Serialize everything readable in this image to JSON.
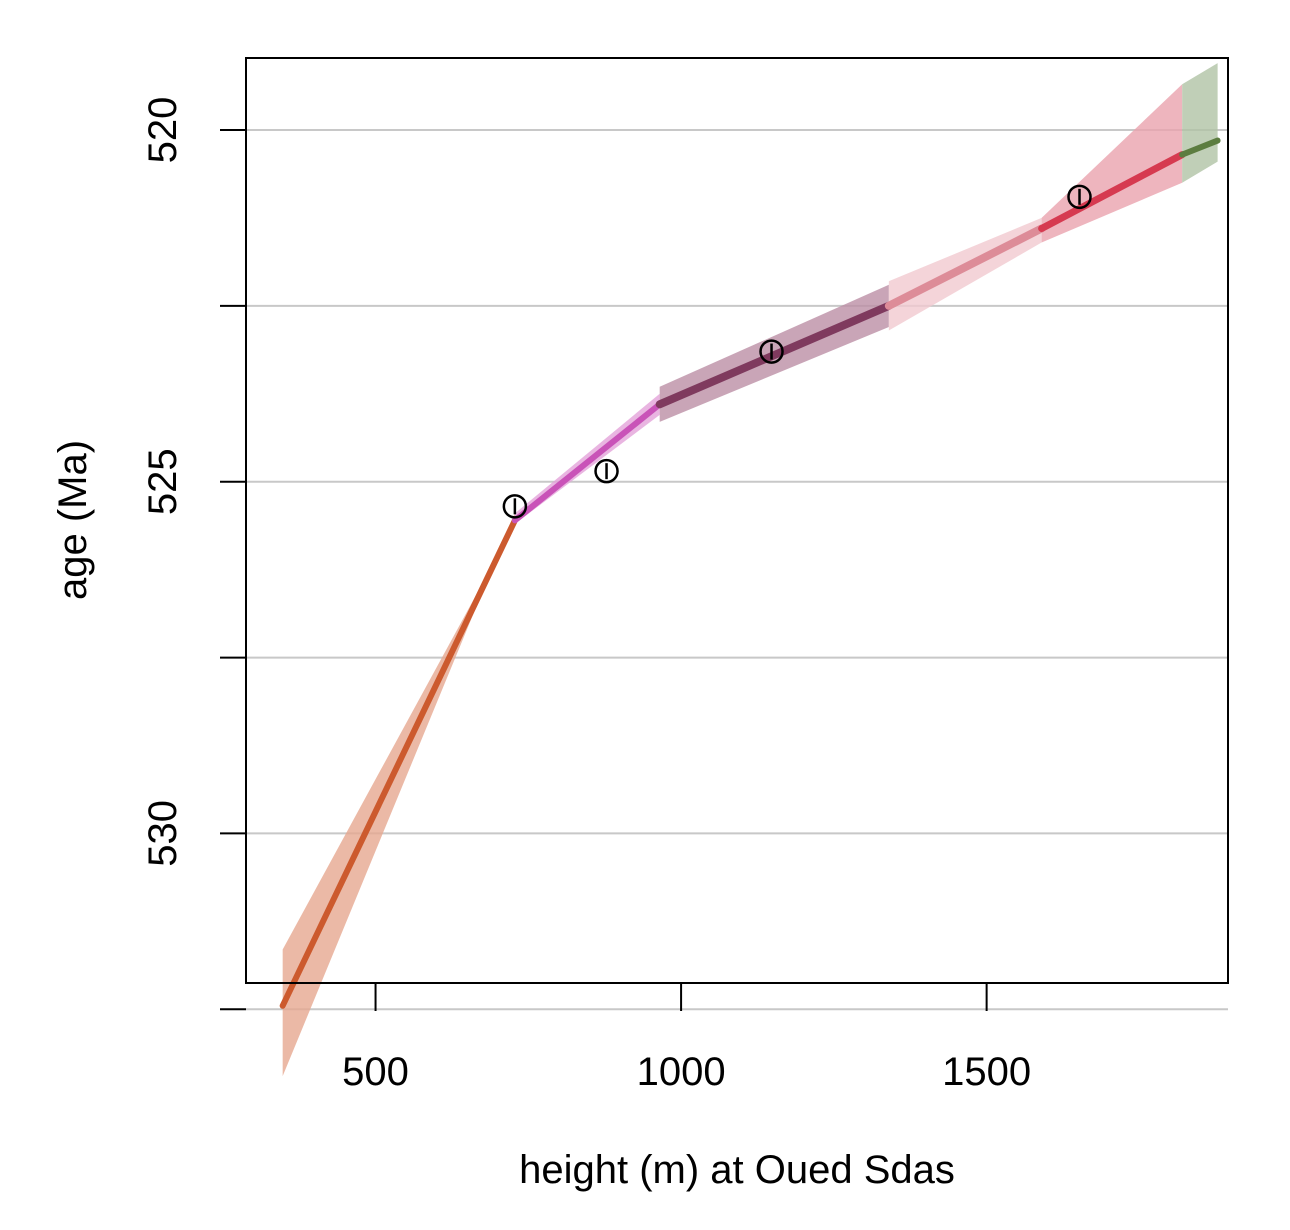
{
  "chart_data": {
    "type": "line",
    "title": "",
    "xlabel": "height (m) at Oued Sdas",
    "ylabel": "age (Ma)",
    "xlim": [
      288,
      1895
    ],
    "ylim": [
      520,
      533.15
    ],
    "y_reversed": true,
    "x_ticks": [
      {
        "value": 500,
        "label": "500"
      },
      {
        "value": 1000,
        "label": "1000"
      },
      {
        "value": 1500,
        "label": "1500"
      }
    ],
    "y_ticks": [
      {
        "value": 520,
        "label": "520"
      },
      {
        "value": 522.5,
        "label": ""
      },
      {
        "value": 525,
        "label": "525"
      },
      {
        "value": 527.5,
        "label": ""
      },
      {
        "value": 530,
        "label": "530"
      },
      {
        "value": 532.5,
        "label": ""
      }
    ],
    "grid": "horizontal",
    "series": [
      {
        "color": "#cc5a2e",
        "band_color": "#e6a890",
        "width": 6,
        "points": [
          [
            348,
            532.45
          ],
          [
            728,
            525.55
          ]
        ],
        "band": [
          [
            348,
            531.65,
            533.45
          ],
          [
            728,
            525.6,
            525.45
          ]
        ]
      },
      {
        "color": "#c953b8",
        "band_color": "#e3a2da",
        "width": 6,
        "points": [
          [
            728,
            525.55
          ],
          [
            965,
            523.9
          ]
        ],
        "band": [
          [
            728,
            525.45,
            525.6
          ],
          [
            965,
            523.75,
            524.05
          ]
        ]
      },
      {
        "color": "#7f3a5e",
        "band_color": "#bb8ea5",
        "width": 8,
        "points": [
          [
            965,
            523.9
          ],
          [
            1340,
            522.5
          ]
        ],
        "band": [
          [
            965,
            523.65,
            524.15
          ],
          [
            1340,
            522.2,
            522.8
          ]
        ]
      },
      {
        "color": "#dd8c98",
        "band_color": "#f1c9cf",
        "width": 8,
        "points": [
          [
            1340,
            522.5
          ],
          [
            1590,
            521.4
          ]
        ],
        "band": [
          [
            1340,
            522.15,
            522.85
          ],
          [
            1590,
            521.25,
            521.6
          ]
        ]
      },
      {
        "color": "#d63a50",
        "band_color": "#eaa3ae",
        "width": 7,
        "points": [
          [
            1590,
            521.4
          ],
          [
            1820,
            520.35
          ]
        ],
        "band": [
          [
            1590,
            521.25,
            521.6
          ],
          [
            1820,
            519.35,
            520.75
          ]
        ]
      },
      {
        "color": "#5c7d40",
        "band_color": "#b0c3a5",
        "width": 6,
        "points": [
          [
            1820,
            520.35
          ],
          [
            1878,
            520.15
          ]
        ],
        "band": [
          [
            1820,
            519.35,
            520.75
          ],
          [
            1878,
            519.05,
            520.45
          ]
        ]
      }
    ],
    "points": [
      {
        "x": 728,
        "y": 525.35
      },
      {
        "x": 878,
        "y": 524.85
      },
      {
        "x": 1148,
        "y": 523.15
      },
      {
        "x": 1652,
        "y": 520.95
      }
    ]
  }
}
